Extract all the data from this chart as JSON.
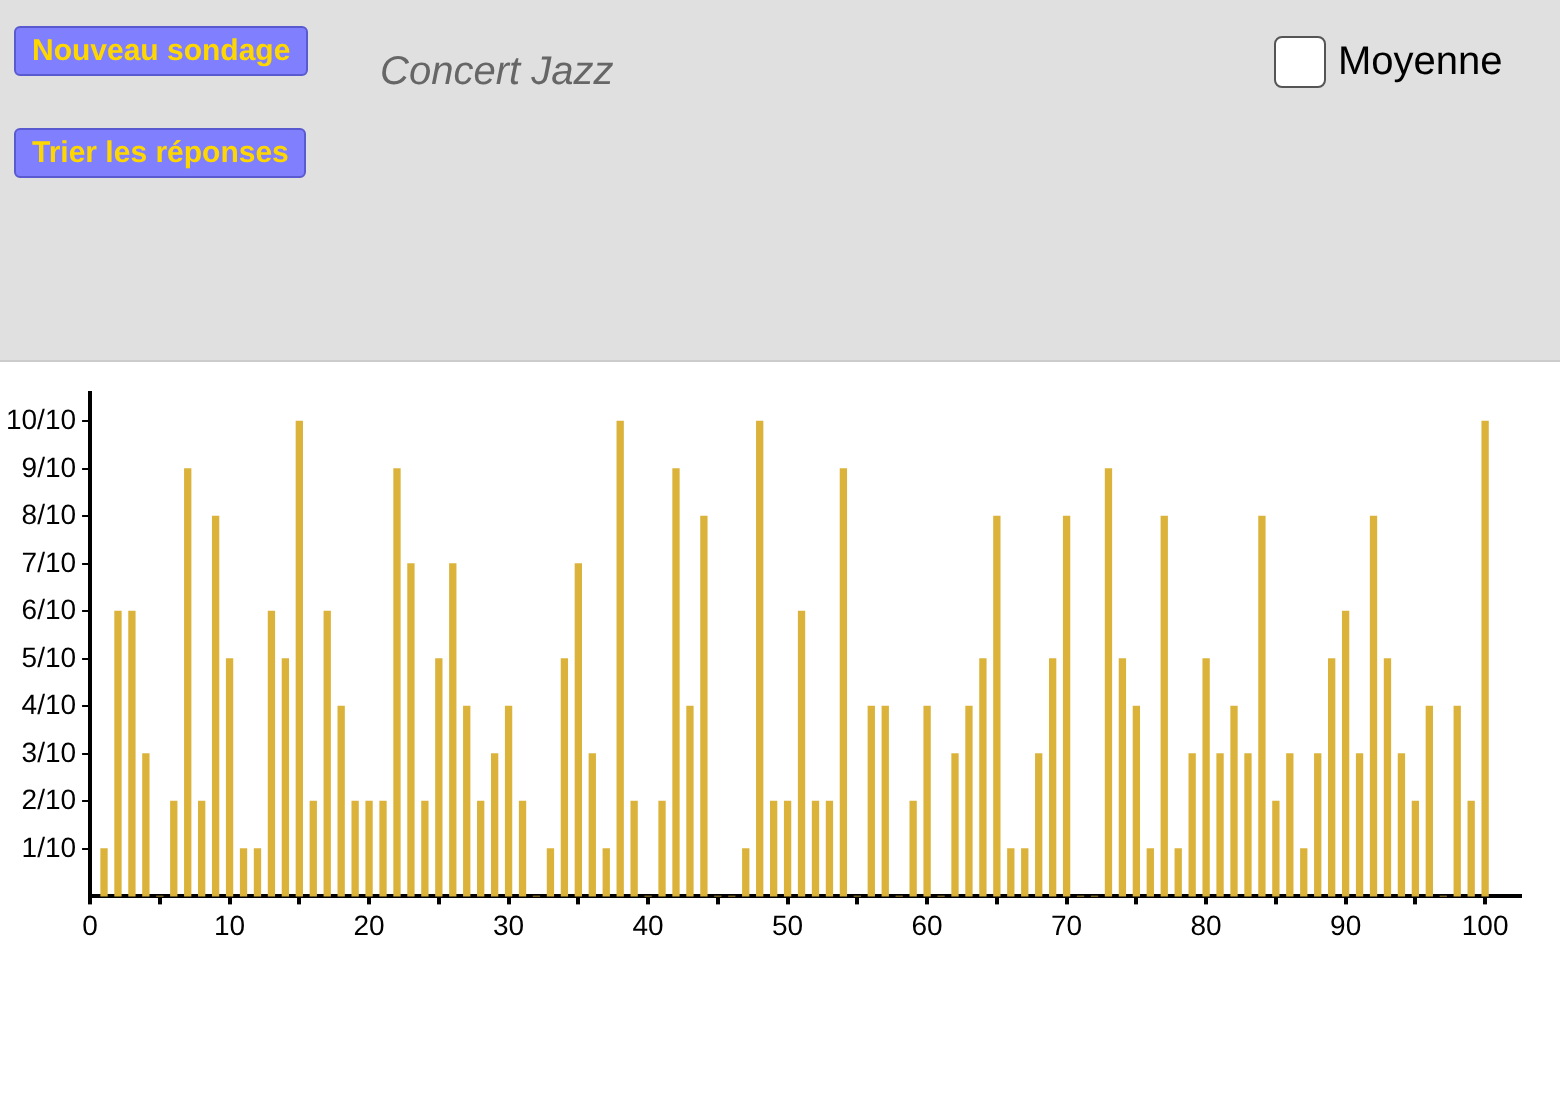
{
  "chart_data": {
    "type": "bar",
    "title": "Concert Jazz",
    "annotations": [
      "Nouveau sondage",
      "Trier les réponses",
      "Moyenne"
    ],
    "x": [
      1,
      2,
      3,
      4,
      5,
      6,
      7,
      8,
      9,
      10,
      11,
      12,
      13,
      14,
      15,
      16,
      17,
      18,
      19,
      20,
      21,
      22,
      23,
      24,
      25,
      26,
      27,
      28,
      29,
      30,
      31,
      32,
      33,
      34,
      35,
      36,
      37,
      38,
      39,
      40,
      41,
      42,
      43,
      44,
      45,
      46,
      47,
      48,
      49,
      50,
      51,
      52,
      53,
      54,
      55,
      56,
      57,
      58,
      59,
      60,
      61,
      62,
      63,
      64,
      65,
      66,
      67,
      68,
      69,
      70,
      71,
      72,
      73,
      74,
      75,
      76,
      77,
      78,
      79,
      80,
      81,
      82,
      83,
      84,
      85,
      86,
      87,
      88,
      89,
      90,
      91,
      92,
      93,
      94,
      95,
      96,
      97,
      98,
      99,
      100
    ],
    "values": [
      0.1,
      0.6,
      0.6,
      0.3,
      0,
      0.2,
      0.9,
      0.2,
      0.8,
      0.5,
      0.1,
      0.1,
      0.6,
      0.5,
      1.0,
      0.2,
      0.6,
      0.4,
      0.2,
      0.2,
      0.2,
      0.9,
      0.7,
      0.2,
      0.5,
      0.7,
      0.4,
      0.2,
      0.3,
      0.4,
      0.2,
      0,
      0.1,
      0.5,
      0.7,
      0.3,
      0.1,
      1.0,
      0.2,
      0,
      0.2,
      0.9,
      0.4,
      0.8,
      0,
      0,
      0.1,
      1.0,
      0.2,
      0.2,
      0.6,
      0.2,
      0.2,
      0.9,
      0,
      0.4,
      0.4,
      0,
      0.2,
      0.4,
      0,
      0.3,
      0.4,
      0.5,
      0.8,
      0.1,
      0.1,
      0.3,
      0.5,
      0.8,
      0,
      0,
      0.9,
      0.5,
      0.4,
      0.1,
      0.8,
      0.1,
      0.3,
      0.5,
      0.3,
      0.4,
      0.3,
      0.8,
      0.2,
      0.3,
      0.1,
      0.3,
      0.5,
      0.6,
      0.3,
      0.8,
      0.5,
      0.3,
      0.2,
      0.4,
      0,
      0.4,
      0.2,
      1.0
    ],
    "color": "#dbb33b",
    "xlim": [
      0,
      102.5
    ],
    "ylim": [
      0,
      1.06
    ],
    "xticks": [
      0,
      {
        "value": 5,
        "label": null
      },
      10,
      {
        "value": 15,
        "label": null
      },
      20,
      {
        "value": 25,
        "label": null
      },
      30,
      {
        "value": 35,
        "label": null
      },
      40,
      {
        "value": 45,
        "label": null
      },
      50,
      {
        "value": 55,
        "label": null
      },
      60,
      {
        "value": 65,
        "label": null
      },
      70,
      {
        "value": 75,
        "label": null
      },
      80,
      {
        "value": 85,
        "label": null
      },
      90,
      {
        "value": 95,
        "label": null
      },
      100
    ],
    "yticks": [
      {
        "value": 0.1,
        "label": "1/10"
      },
      {
        "value": 0.2,
        "label": "2/10"
      },
      {
        "value": 0.3,
        "label": "3/10"
      },
      {
        "value": 0.4,
        "label": "4/10"
      },
      {
        "value": 0.5,
        "label": "5/10"
      },
      {
        "value": 0.6,
        "label": "6/10"
      },
      {
        "value": 0.7,
        "label": "7/10"
      },
      {
        "value": 0.8,
        "label": "8/10"
      },
      {
        "value": 0.9,
        "label": "9/10"
      },
      {
        "value": 1.0,
        "label": "10/10"
      }
    ],
    "grid": false,
    "legend": false
  }
}
